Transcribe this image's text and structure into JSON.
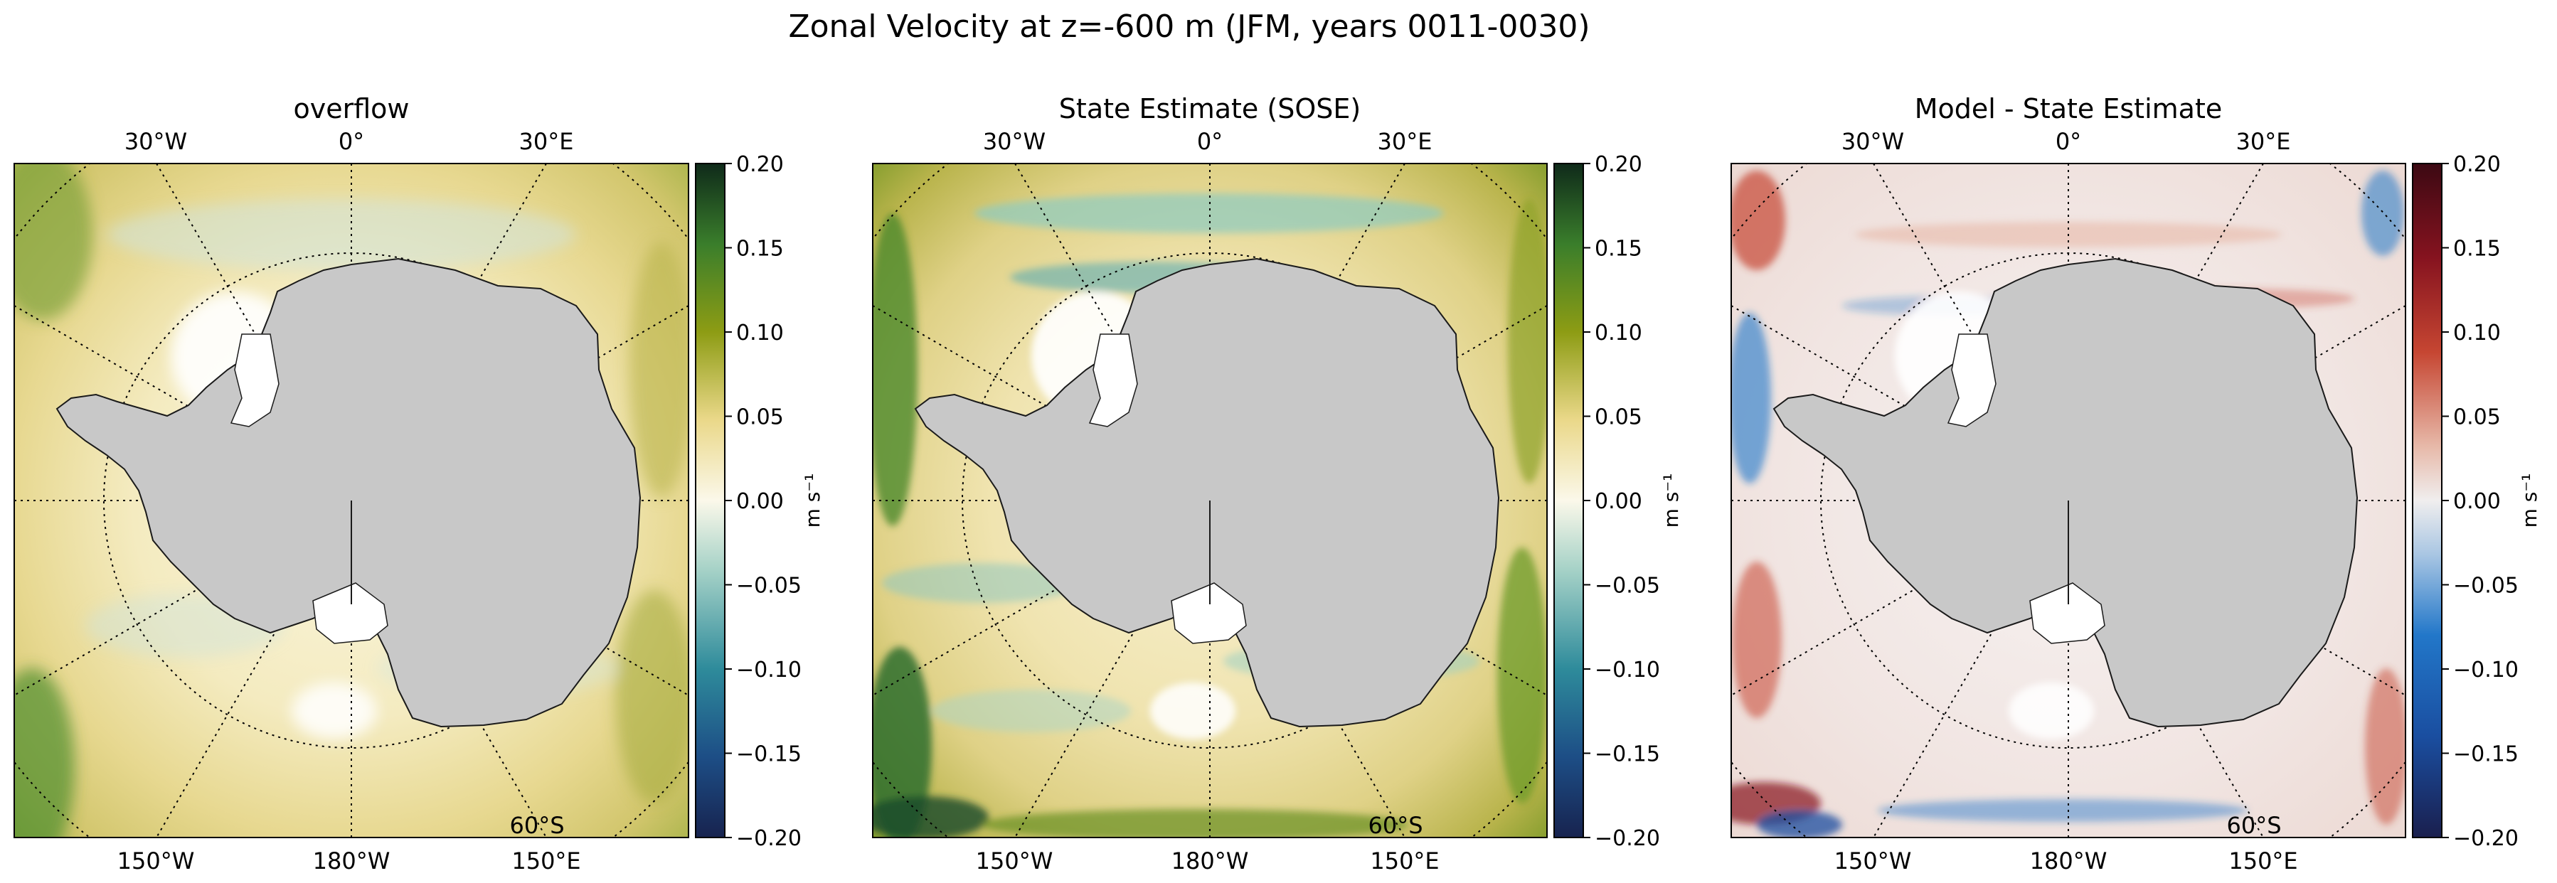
{
  "figure": {
    "suptitle": "Zonal Velocity at z=-600 m (JFM, years 0011-0030)"
  },
  "colors": {
    "land": "#c8c8c8",
    "no_data": "#ffffff",
    "graticule": "#000000",
    "tarn_low": "#17234f",
    "tarn_mid_low": "#2e8b9b",
    "tarn_zero": "#fbf8ea",
    "tarn_mid_high": "#8d9c14",
    "tarn_high": "#0f2a1a",
    "balance_low": "#1a1f4e",
    "balance_mid_low": "#2277c9",
    "balance_zero": "#f0eeee",
    "balance_mid_high": "#c64632",
    "balance_high": "#3c0913"
  },
  "chart_data": [
    {
      "type": "heatmap",
      "projection": "south-polar-stereographic",
      "title": "overflow",
      "variable": "zonal velocity",
      "colormap": "tarn-diverging (blue-white-green)",
      "colorbar": {
        "label": "m s⁻¹",
        "ticks": [
          0.2,
          0.15,
          0.1,
          0.05,
          0.0,
          -0.05,
          -0.1,
          -0.15,
          -0.2
        ],
        "tick_labels": [
          "0.20",
          "0.15",
          "0.10",
          "0.05",
          "0.00",
          "−0.05",
          "−0.10",
          "−0.15",
          "−0.20"
        ],
        "range": [
          -0.2,
          0.2
        ]
      },
      "top_labels": [
        "30°W",
        "0°",
        "30°E"
      ],
      "bottom_labels": [
        "150°W",
        "180°W",
        "150°E"
      ],
      "lat_label": "60°S",
      "grid": true,
      "field_description": "mostly weak positive (yellow) eastward flow, stronger green along outer ring, weak negative bands near the shelf"
    },
    {
      "type": "heatmap",
      "projection": "south-polar-stereographic",
      "title": "State Estimate (SOSE)",
      "variable": "zonal velocity",
      "colormap": "tarn-diverging (blue-white-green)",
      "colorbar": {
        "label": "m s⁻¹",
        "ticks": [
          0.2,
          0.15,
          0.1,
          0.05,
          0.0,
          -0.05,
          -0.1,
          -0.15,
          -0.2
        ],
        "tick_labels": [
          "0.20",
          "0.15",
          "0.10",
          "0.05",
          "0.00",
          "−0.05",
          "−0.10",
          "−0.15",
          "−0.20"
        ],
        "range": [
          -0.2,
          0.2
        ]
      },
      "top_labels": [
        "30°W",
        "0°",
        "30°E"
      ],
      "bottom_labels": [
        "150°W",
        "180°W",
        "150°E"
      ],
      "lat_label": "60°S",
      "grid": true,
      "field_description": "filamented eddy-rich flow; strong positive green jets in outer Antarctic Circumpolar Current, negative teal slope current near continent"
    },
    {
      "type": "heatmap",
      "projection": "south-polar-stereographic",
      "title": "Model - State Estimate",
      "variable": "zonal velocity difference",
      "colormap": "balance (blue-white-red)",
      "colorbar": {
        "label": "m s⁻¹",
        "ticks": [
          0.2,
          0.15,
          0.1,
          0.05,
          0.0,
          -0.05,
          -0.1,
          -0.15,
          -0.2
        ],
        "tick_labels": [
          "0.20",
          "0.15",
          "0.10",
          "0.05",
          "0.00",
          "−0.05",
          "−0.10",
          "−0.15",
          "−0.20"
        ],
        "range": [
          -0.2,
          0.2
        ]
      },
      "top_labels": [
        "30°W",
        "0°",
        "30°E"
      ],
      "bottom_labels": [
        "150°W",
        "180°W",
        "150°E"
      ],
      "lat_label": "60°S",
      "grid": true,
      "field_description": "near-zero pale field with alternating red and blue eddy-scale anomalies, strongest near outer corners"
    }
  ]
}
